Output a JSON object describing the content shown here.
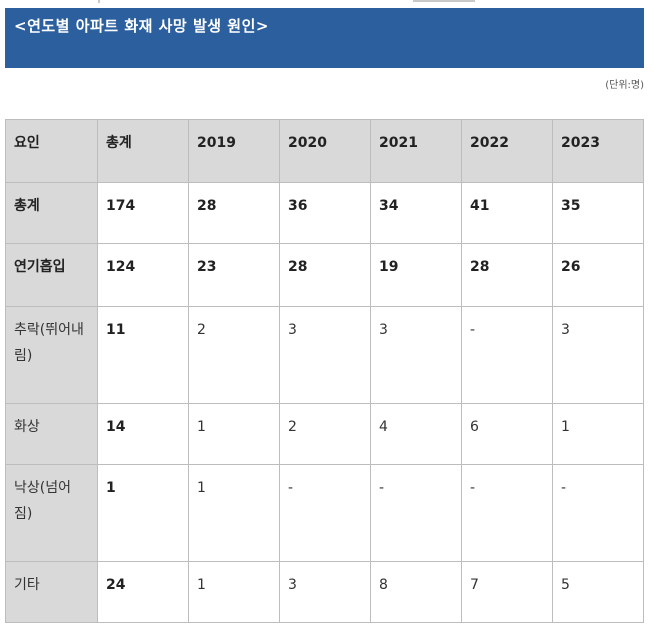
{
  "title": "<연도별 아파트 화재 사망 발생 원인>",
  "unit": "(단위:명)",
  "table": {
    "headers": [
      "요인",
      "총계",
      "2019",
      "2020",
      "2021",
      "2022",
      "2023"
    ],
    "rows": [
      {
        "factor": "총계",
        "values": [
          "174",
          "28",
          "36",
          "34",
          "41",
          "35"
        ]
      },
      {
        "factor": "연기흡입",
        "values": [
          "124",
          "23",
          "28",
          "19",
          "28",
          "26"
        ]
      },
      {
        "factor": "추락(뛰어내림)",
        "values": [
          "11",
          "2",
          "3",
          "3",
          "-",
          "3"
        ]
      },
      {
        "factor": "화상",
        "values": [
          "14",
          "1",
          "2",
          "4",
          "6",
          "1"
        ]
      },
      {
        "factor": "낙상(넘어짐)",
        "values": [
          "1",
          "1",
          "-",
          "-",
          "-",
          "-"
        ]
      },
      {
        "factor": "기타",
        "values": [
          "24",
          "1",
          "3",
          "8",
          "7",
          "5"
        ]
      }
    ]
  }
}
